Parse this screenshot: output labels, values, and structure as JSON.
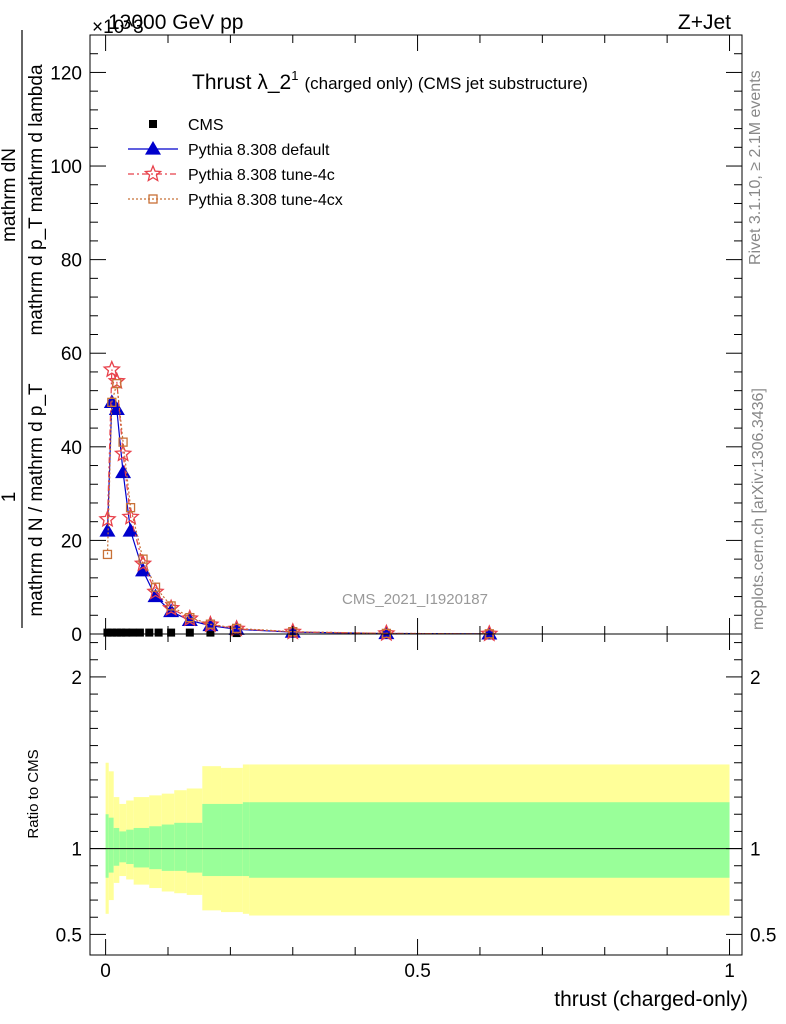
{
  "header": {
    "left": "13000 GeV pp",
    "right": "Z+Jet",
    "exponent": "×10^3"
  },
  "title": {
    "main": "Thrust λ_2",
    "sup": "1",
    "rest": "(charged only) (CMS jet substructure)"
  },
  "watermark": "CMS_2021_I1920187",
  "side_text": {
    "rivet": "Rivet 3.1.10, ≥ 2.1M events",
    "mcplots": "mcplots.cern.ch [arXiv:1306.3436]"
  },
  "axes": {
    "ylabel_top_numer": "mathrm dN",
    "ylabel_top_denom": "mathrm d p_T mathrm d lambda",
    "ylabel_bottom_numer": "1",
    "ylabel_bottom_denom": "mathrm d N / mathrm d p_T",
    "ratio_ylabel": "Ratio to CMS",
    "xlabel": "thrust (charged-only)"
  },
  "colors": {
    "cms": "#000000",
    "default": "#0000cc",
    "tune4c": "#e8414b",
    "tune4cx": "#c87137",
    "band_inner": "#99ff99",
    "band_outer": "#ffff99"
  },
  "chart_data": [
    {
      "type": "line",
      "panel": "main",
      "xlim": [
        -0.025,
        1.02
      ],
      "ylim": [
        0,
        128
      ],
      "y_scale_note": "×10^3",
      "yticks": [
        0,
        20,
        40,
        60,
        80,
        100,
        120
      ],
      "xticks": [
        0,
        0.5,
        1
      ],
      "legend_position": "top-left",
      "series": [
        {
          "name": "CMS",
          "marker": "square",
          "x": [
            0.003,
            0.01,
            0.018,
            0.025,
            0.033,
            0.043,
            0.055,
            0.07,
            0.085,
            0.105,
            0.135,
            0.168,
            0.21,
            0.3,
            0.45,
            0.615
          ],
          "y": [
            0.3,
            0.3,
            0.3,
            0.3,
            0.3,
            0.3,
            0.3,
            0.3,
            0.3,
            0.3,
            0.3,
            0.3,
            0.2,
            0.1,
            0.05,
            0.02
          ]
        },
        {
          "name": "Pythia 8.308 default",
          "marker": "triangle",
          "x": [
            0.003,
            0.01,
            0.018,
            0.028,
            0.04,
            0.06,
            0.08,
            0.105,
            0.135,
            0.168,
            0.21,
            0.3,
            0.45,
            0.615
          ],
          "y": [
            22,
            49.5,
            48,
            34.5,
            22,
            13.5,
            8,
            4.8,
            2.9,
            1.8,
            1.0,
            0.4,
            0.1,
            0.03
          ]
        },
        {
          "name": "Pythia 8.308 tune-4c",
          "marker": "star",
          "x": [
            0.003,
            0.01,
            0.018,
            0.028,
            0.04,
            0.06,
            0.08,
            0.105,
            0.135,
            0.168,
            0.21,
            0.3,
            0.45,
            0.615
          ],
          "y": [
            24.5,
            56.5,
            54,
            38.5,
            25,
            15,
            9,
            5.5,
            3.3,
            2.0,
            1.1,
            0.45,
            0.12,
            0.03
          ]
        },
        {
          "name": "Pythia 8.308 tune-4cx",
          "marker": "open-square",
          "x": [
            0.003,
            0.01,
            0.018,
            0.028,
            0.04,
            0.06,
            0.08,
            0.105,
            0.135,
            0.168,
            0.21,
            0.3,
            0.45,
            0.615
          ],
          "y": [
            17,
            49.5,
            53.5,
            41,
            27,
            16,
            10,
            6,
            3.5,
            2.1,
            1.2,
            0.5,
            0.13,
            0.04
          ]
        }
      ]
    },
    {
      "type": "area",
      "panel": "ratio",
      "xlim": [
        -0.025,
        1.02
      ],
      "ylim": [
        0.38,
        2.25
      ],
      "yticks": [
        0.5,
        1,
        2
      ],
      "xticks": [
        0,
        0.5,
        1
      ],
      "bin_edges": [
        0,
        0.005,
        0.013,
        0.022,
        0.033,
        0.045,
        0.07,
        0.09,
        0.11,
        0.13,
        0.155,
        0.185,
        0.22,
        0.23,
        1.0
      ],
      "inner_lo": [
        0.83,
        0.86,
        0.9,
        0.92,
        0.91,
        0.89,
        0.88,
        0.87,
        0.87,
        0.86,
        0.84,
        0.84,
        0.84,
        0.83
      ],
      "inner_hi": [
        1.2,
        1.18,
        1.12,
        1.1,
        1.11,
        1.12,
        1.13,
        1.14,
        1.15,
        1.15,
        1.26,
        1.26,
        1.27,
        1.27
      ],
      "outer_lo": [
        0.62,
        0.7,
        0.8,
        0.84,
        0.82,
        0.79,
        0.77,
        0.75,
        0.74,
        0.73,
        0.64,
        0.63,
        0.62,
        0.61
      ],
      "outer_hi": [
        1.5,
        1.45,
        1.3,
        1.26,
        1.28,
        1.3,
        1.31,
        1.32,
        1.34,
        1.35,
        1.48,
        1.47,
        1.49,
        1.49
      ]
    }
  ]
}
